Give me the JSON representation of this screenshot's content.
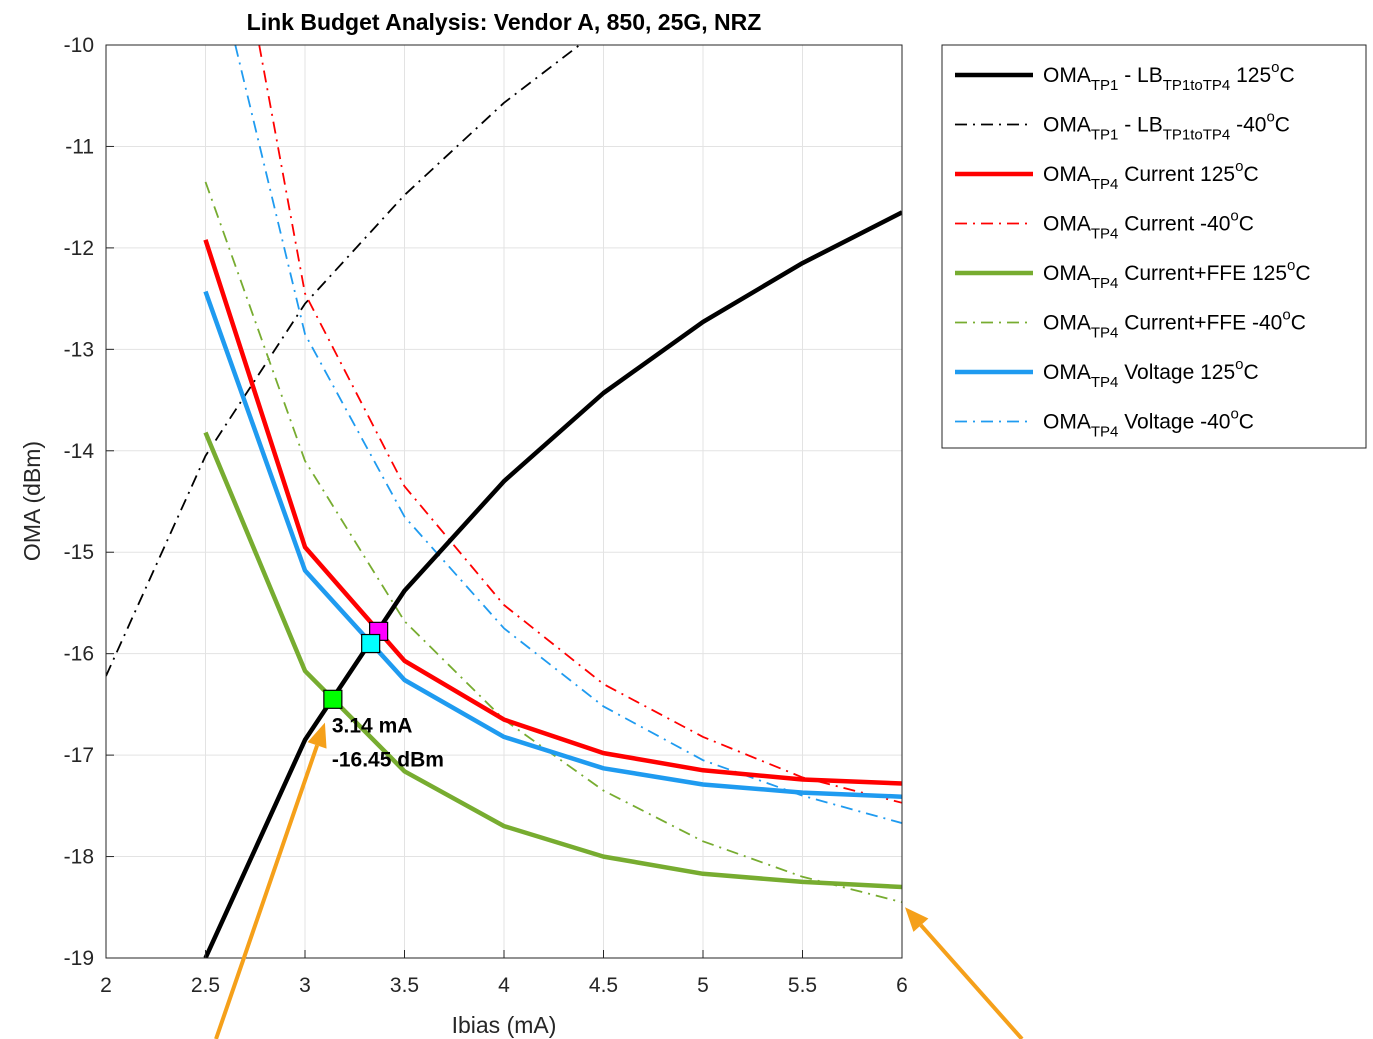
{
  "chart_data": {
    "type": "line",
    "title": "Link Budget Analysis: Vendor A, 850, 25G, NRZ",
    "xlabel": "Ibias (mA)",
    "ylabel": "OMA (dBm)",
    "xlim": [
      2,
      6
    ],
    "ylim": [
      -19,
      -10
    ],
    "xticks": [
      "2",
      "2.5",
      "3",
      "3.5",
      "4",
      "4.5",
      "5",
      "5.5",
      "6"
    ],
    "yticks": [
      "-10",
      "-11",
      "-12",
      "-13",
      "-14",
      "-15",
      "-16",
      "-17",
      "-18",
      "-19"
    ],
    "grid": true,
    "legend_position": "outside-right",
    "series": [
      {
        "id": "lb125",
        "base": "OMA",
        "base_sub": "TP1",
        "mid": " - LB",
        "mid_sub": "TP1toTP4",
        "tail": " 125",
        "unit": "C",
        "color": "#000000",
        "style": "solid",
        "x": [
          2.5,
          3.0,
          3.5,
          4.0,
          4.5,
          5.0,
          5.5,
          6.0
        ],
        "y": [
          -19.0,
          -16.85,
          -15.38,
          -14.3,
          -13.43,
          -12.73,
          -12.15,
          -11.65
        ]
      },
      {
        "id": "lbm40",
        "base": "OMA",
        "base_sub": "TP1",
        "mid": " - LB",
        "mid_sub": "TP1toTP4",
        "tail": " -40",
        "unit": "C",
        "color": "#000000",
        "style": "dashdot",
        "x": [
          2.0,
          2.5,
          3.0,
          3.5,
          4.0,
          4.38
        ],
        "y": [
          -16.22,
          -14.05,
          -12.55,
          -11.48,
          -10.57,
          -10.0
        ]
      },
      {
        "id": "cur125",
        "base": "OMA",
        "base_sub": "TP4",
        "mid": " Current 125",
        "mid_sub": "",
        "tail": "",
        "unit": "C",
        "color": "#ff0000",
        "style": "solid",
        "x": [
          2.5,
          3.0,
          3.5,
          4.0,
          4.5,
          5.0,
          5.5,
          6.0
        ],
        "y": [
          -11.92,
          -14.95,
          -16.07,
          -16.65,
          -16.98,
          -17.15,
          -17.24,
          -17.28
        ]
      },
      {
        "id": "curm40",
        "base": "OMA",
        "base_sub": "TP4",
        "mid": " Current -40",
        "mid_sub": "",
        "tail": "",
        "unit": "C",
        "color": "#ff0000",
        "style": "dashdot",
        "x": [
          2.77,
          3.0,
          3.5,
          4.0,
          4.5,
          5.0,
          5.5,
          6.0
        ],
        "y": [
          -10.0,
          -12.45,
          -14.35,
          -15.52,
          -16.3,
          -16.82,
          -17.22,
          -17.47
        ]
      },
      {
        "id": "ffe125",
        "base": "OMA",
        "base_sub": "TP4",
        "mid": " Current+FFE 125",
        "mid_sub": "",
        "tail": "",
        "unit": "C",
        "color": "#77ac30",
        "style": "solid",
        "x": [
          2.5,
          3.0,
          3.5,
          4.0,
          4.5,
          5.0,
          5.5,
          6.0
        ],
        "y": [
          -13.82,
          -16.17,
          -17.16,
          -17.7,
          -18.0,
          -18.17,
          -18.25,
          -18.3
        ]
      },
      {
        "id": "ffem40",
        "base": "OMA",
        "base_sub": "TP4",
        "mid": " Current+FFE -40",
        "mid_sub": "",
        "tail": "",
        "unit": "C",
        "color": "#77ac30",
        "style": "dashdot",
        "x": [
          2.5,
          3.0,
          3.5,
          4.0,
          4.5,
          5.0,
          5.5,
          6.0
        ],
        "y": [
          -11.35,
          -14.1,
          -15.68,
          -16.65,
          -17.35,
          -17.85,
          -18.2,
          -18.45
        ]
      },
      {
        "id": "volt125",
        "base": "OMA",
        "base_sub": "TP4",
        "mid": " Voltage 125",
        "mid_sub": "",
        "tail": "",
        "unit": "C",
        "color": "#1f9bf0",
        "style": "solid",
        "x": [
          2.5,
          3.0,
          3.5,
          4.0,
          4.5,
          5.0,
          5.5,
          6.0
        ],
        "y": [
          -12.43,
          -15.18,
          -16.26,
          -16.82,
          -17.13,
          -17.29,
          -17.37,
          -17.41
        ]
      },
      {
        "id": "voltm40",
        "base": "OMA",
        "base_sub": "TP4",
        "mid": " Voltage -40",
        "mid_sub": "",
        "tail": "",
        "unit": "C",
        "color": "#1f9bf0",
        "style": "dashdot",
        "x": [
          2.65,
          3.0,
          3.5,
          4.0,
          4.5,
          5.0,
          5.5,
          6.0
        ],
        "y": [
          -10.0,
          -12.85,
          -14.65,
          -15.75,
          -16.52,
          -17.05,
          -17.4,
          -17.67
        ]
      }
    ],
    "markers": [
      {
        "name": "current-125-crossing-marker",
        "x": 3.37,
        "y": -15.78,
        "color": "#ff00ff"
      },
      {
        "name": "voltage-125-crossing-marker",
        "x": 3.33,
        "y": -15.9,
        "color": "#00ffff"
      },
      {
        "name": "ffe-125-crossing-marker",
        "x": 3.14,
        "y": -16.45,
        "color": "#00ff00"
      }
    ],
    "annotation": {
      "line1": "3.14 mA",
      "line2": "-16.45 dBm",
      "x": 3.14,
      "y": -16.45
    },
    "arrow_color": "#f5a01a"
  }
}
